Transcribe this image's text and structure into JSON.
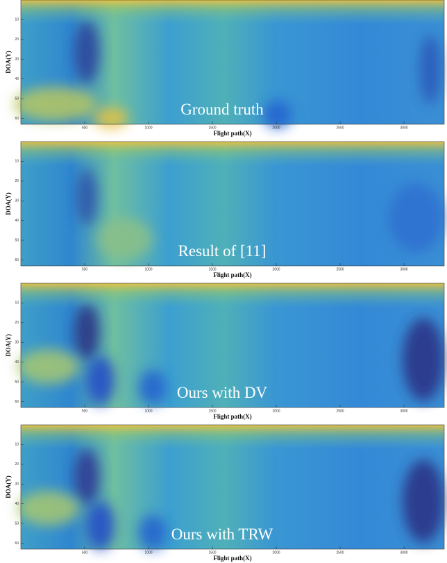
{
  "chart_data": [
    {
      "type": "heatmap",
      "title": "Ground truth",
      "xlabel": "Flight path(X)",
      "ylabel": "DOA(Y)",
      "xlim": [
        0,
        3315
      ],
      "ylim": [
        0,
        63
      ],
      "y_reversed": true,
      "xticks": [
        500,
        1000,
        1500,
        2000,
        2500,
        3000
      ],
      "yticks": [
        10,
        20,
        30,
        40,
        50,
        60
      ]
    },
    {
      "type": "heatmap",
      "title": "Result of [11]",
      "xlabel": "Flight path(X)",
      "ylabel": "DOA(Y)",
      "xlim": [
        0,
        3315
      ],
      "ylim": [
        0,
        63
      ],
      "y_reversed": true,
      "xticks": [
        500,
        1000,
        1500,
        2000,
        2500,
        3000
      ],
      "yticks": [
        10,
        20,
        30,
        40,
        50,
        60
      ]
    },
    {
      "type": "heatmap",
      "title": "Ours with DV",
      "xlabel": "Flight path(X)",
      "ylabel": "DOA(Y)",
      "xlim": [
        0,
        3315
      ],
      "ylim": [
        0,
        63
      ],
      "y_reversed": true,
      "xticks": [
        500,
        1000,
        1500,
        2000,
        2500,
        3000
      ],
      "yticks": [
        10,
        20,
        30,
        40,
        50,
        60
      ]
    },
    {
      "type": "heatmap",
      "title": "Ours with TRW",
      "xlabel": "Flight path(X)",
      "ylabel": "DOA(Y)",
      "xlim": [
        0,
        3315
      ],
      "ylim": [
        0,
        63
      ],
      "y_reversed": true,
      "xticks": [
        500,
        1000,
        1500,
        2000,
        2500,
        3000
      ],
      "yticks": [
        10,
        20,
        30,
        40,
        50,
        60
      ]
    }
  ]
}
